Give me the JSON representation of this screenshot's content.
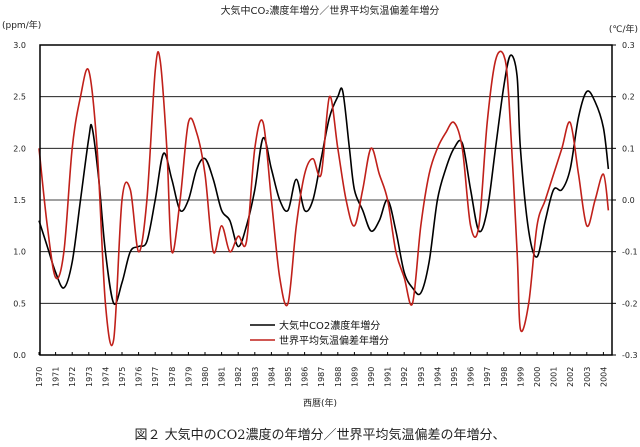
{
  "chart_data": {
    "type": "line",
    "title": "大気中CO₂濃度年増分／世界平均気温偏差年増分",
    "xlabel": "西暦(年)",
    "ylabel": "(ppm/年)",
    "y2label": "(℃/年)",
    "ylim": [
      0,
      3.0
    ],
    "y2lim": [
      -0.3,
      0.3
    ],
    "yticks": [
      "0.0",
      "0.5",
      "1.0",
      "1.5",
      "2.0",
      "2.5",
      "3.0"
    ],
    "y2ticks": [
      "-0.3",
      "-0.2",
      "-0.1",
      "0.0",
      "0.1",
      "0.2",
      "0.3"
    ],
    "xticks": [
      "1970",
      "1971",
      "1972",
      "1973",
      "1974",
      "1975",
      "1976",
      "1977",
      "1978",
      "1979",
      "1980",
      "1981",
      "1982",
      "1983",
      "1984",
      "1985",
      "1986",
      "1987",
      "1988",
      "1989",
      "1990",
      "1991",
      "1992",
      "1993",
      "1994",
      "1995",
      "1996",
      "1997",
      "1998",
      "1999",
      "2000",
      "2001",
      "2002",
      "2003",
      "2004"
    ],
    "grid": true,
    "legend_position": "bottom-center",
    "series": [
      {
        "name": "大気中CO2濃度年増分",
        "axis": "left",
        "color": "#000000",
        "x": [
          1970,
          1970.5,
          1971,
          1971.5,
          1972,
          1972.5,
          1973,
          1973.2,
          1973.6,
          1974,
          1974.5,
          1975,
          1975.5,
          1976,
          1976.5,
          1977,
          1977.5,
          1978,
          1978.5,
          1979,
          1979.5,
          1980,
          1980.5,
          1981,
          1981.5,
          1982,
          1982.5,
          1983,
          1983.5,
          1984,
          1984.5,
          1985,
          1985.5,
          1986,
          1986.5,
          1987,
          1987.5,
          1988,
          1988.3,
          1988.7,
          1989,
          1989.5,
          1990,
          1990.5,
          1991,
          1991.5,
          1992,
          1992.5,
          1993,
          1993.5,
          1994,
          1994.5,
          1995,
          1995.5,
          1996,
          1996.5,
          1997,
          1997.5,
          1998,
          1998.4,
          1998.8,
          1999,
          1999.5,
          2000,
          2000.5,
          2001,
          2001.5,
          2002,
          2002.5,
          2003,
          2003.5,
          2004,
          2004.3
        ],
        "y": [
          1.3,
          1.05,
          0.8,
          0.65,
          0.9,
          1.5,
          2.1,
          2.2,
          1.7,
          1.0,
          0.5,
          0.7,
          1.0,
          1.05,
          1.1,
          1.5,
          1.95,
          1.7,
          1.4,
          1.5,
          1.8,
          1.9,
          1.7,
          1.4,
          1.3,
          1.05,
          1.25,
          1.6,
          2.1,
          1.8,
          1.5,
          1.4,
          1.7,
          1.4,
          1.5,
          1.9,
          2.3,
          2.5,
          2.55,
          2.0,
          1.6,
          1.4,
          1.2,
          1.3,
          1.5,
          1.2,
          0.8,
          0.65,
          0.6,
          0.9,
          1.5,
          1.8,
          2.0,
          2.05,
          1.6,
          1.2,
          1.4,
          2.0,
          2.6,
          2.9,
          2.7,
          2.0,
          1.2,
          0.95,
          1.3,
          1.6,
          1.6,
          1.8,
          2.3,
          2.55,
          2.45,
          2.2,
          1.8
        ]
      },
      {
        "name": "世界平均気温偏差年増分",
        "axis": "right",
        "color": "#c0201a",
        "x": [
          1970,
          1970.5,
          1971,
          1971.5,
          1972,
          1972.5,
          1973,
          1973.5,
          1974,
          1974.5,
          1975,
          1975.5,
          1976,
          1976.5,
          1977,
          1977.3,
          1977.7,
          1978,
          1978.5,
          1979,
          1979.5,
          1980,
          1980.5,
          1981,
          1981.5,
          1982,
          1982.5,
          1983,
          1983.5,
          1984,
          1984.5,
          1985,
          1985.5,
          1986,
          1986.5,
          1987,
          1987.5,
          1988,
          1988.5,
          1989,
          1989.5,
          1990,
          1990.5,
          1991,
          1991.5,
          1992,
          1992.5,
          1993,
          1993.5,
          1994,
          1994.5,
          1995,
          1995.5,
          1996,
          1996.5,
          1997,
          1997.5,
          1998,
          1998.3,
          1998.8,
          1999,
          1999.5,
          2000,
          2000.5,
          2001,
          2001.5,
          2002,
          2002.5,
          2003,
          2003.5,
          2004,
          2004.3
        ],
        "y": [
          0.1,
          -0.05,
          -0.15,
          -0.1,
          0.1,
          0.2,
          0.25,
          0.1,
          -0.2,
          -0.27,
          0.0,
          0.02,
          -0.1,
          0.0,
          0.25,
          0.27,
          0.1,
          -0.1,
          0.0,
          0.15,
          0.13,
          0.05,
          -0.1,
          -0.05,
          -0.1,
          -0.07,
          -0.08,
          0.1,
          0.15,
          0.0,
          -0.15,
          -0.2,
          -0.05,
          0.05,
          0.08,
          0.05,
          0.2,
          0.1,
          0.0,
          -0.05,
          0.02,
          0.1,
          0.05,
          0.0,
          -0.1,
          -0.15,
          -0.2,
          -0.05,
          0.05,
          0.1,
          0.13,
          0.15,
          0.1,
          -0.05,
          -0.05,
          0.15,
          0.27,
          0.28,
          0.2,
          -0.1,
          -0.25,
          -0.2,
          -0.05,
          0.0,
          0.05,
          0.1,
          0.15,
          0.05,
          -0.05,
          0.0,
          0.05,
          -0.02
        ]
      }
    ]
  },
  "caption": "図２ 大気中のCO2濃度の年増分／世界平均気温偏差の年増分、"
}
